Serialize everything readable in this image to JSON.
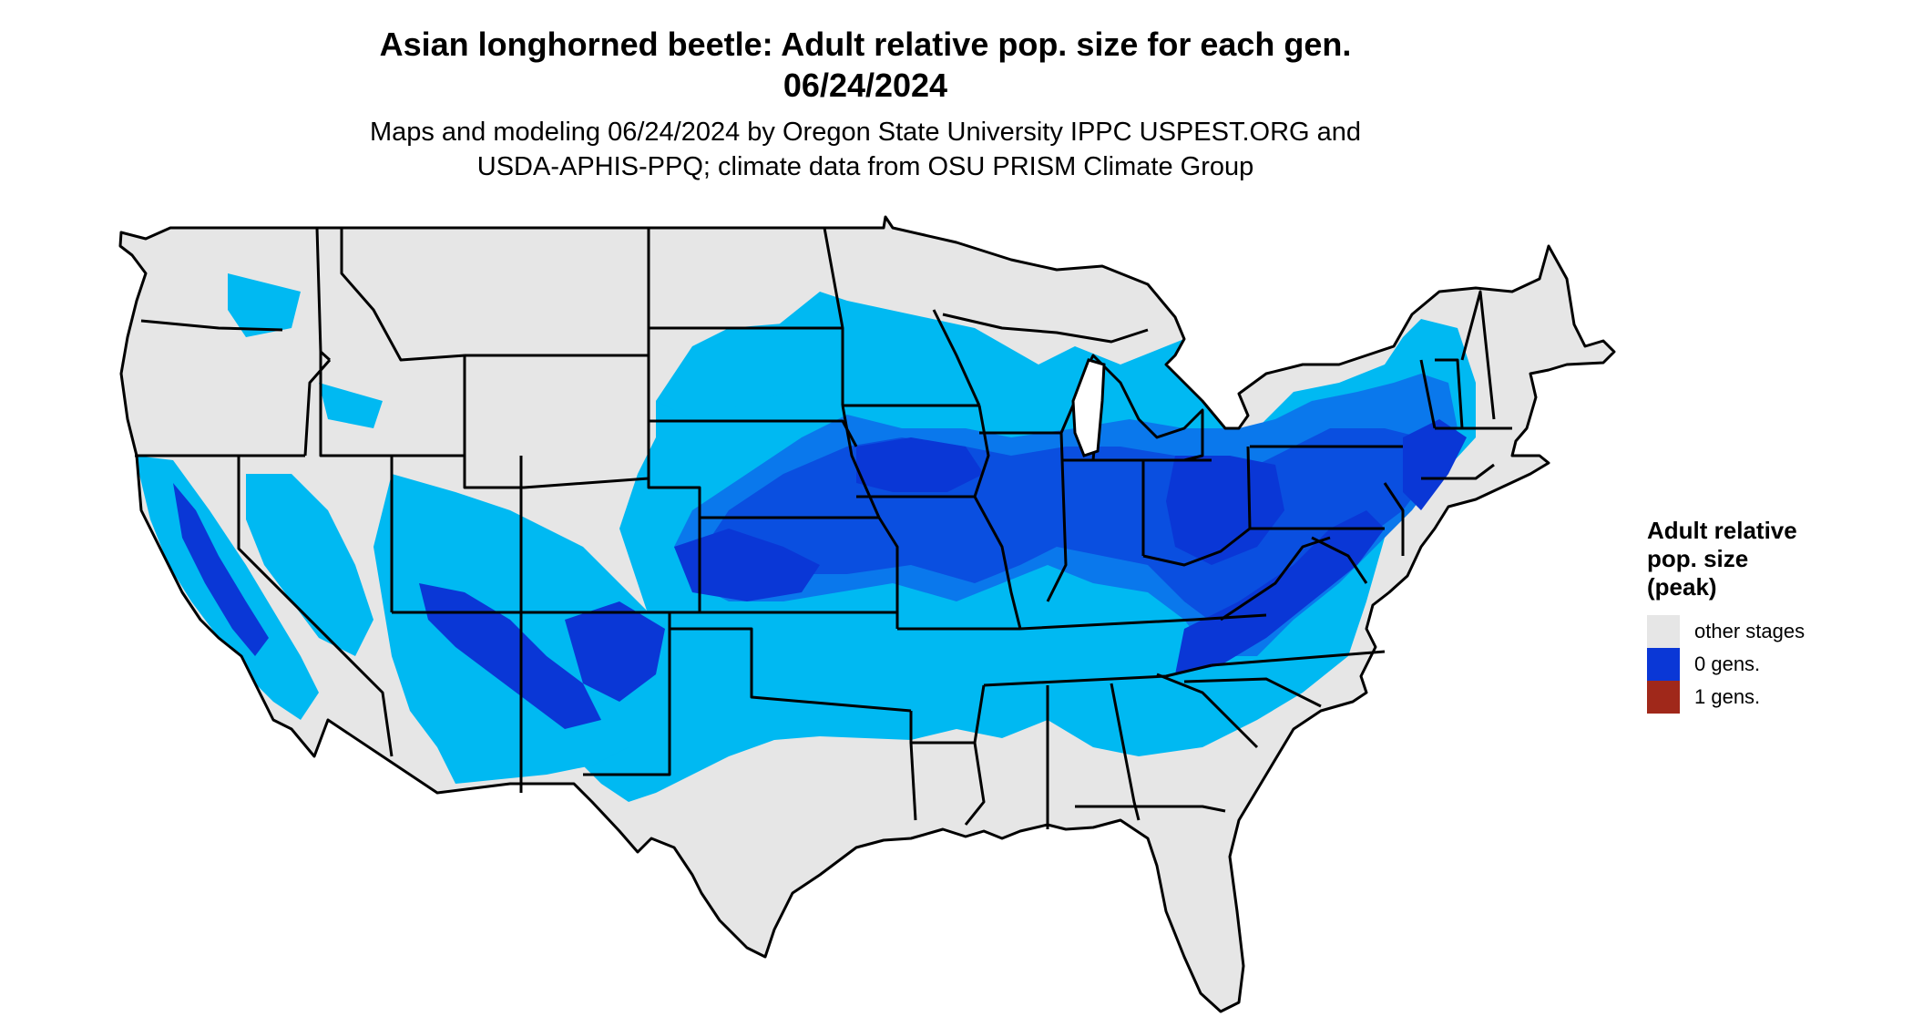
{
  "title": {
    "line1": "Asian longhorned beetle: Adult relative pop. size for each gen.",
    "line2": "06/24/2024"
  },
  "subtitle": {
    "line1": "Maps and modeling 06/24/2024 by Oregon State University IPPC USPEST.ORG and",
    "line2": "USDA-APHIS-PPQ; climate data from OSU PRISM Climate Group"
  },
  "legend": {
    "title_lines": [
      "Adult relative",
      "pop. size",
      "(peak)"
    ],
    "items": [
      {
        "label": "other stages",
        "color": "#e6e6e6"
      },
      {
        "label": "0 gens.",
        "color": "#0a37d6"
      },
      {
        "label": "1 gens.",
        "color": "#a0281a"
      }
    ]
  },
  "map_colors": {
    "background": "#e6e6e6",
    "light_blue": "#00b9f2",
    "mid_blue": "#0a78ec",
    "deep_blue": "#0a4fe0",
    "dark_blue": "#0a37d6",
    "border": "#000000"
  }
}
